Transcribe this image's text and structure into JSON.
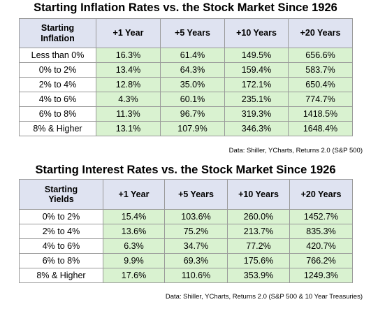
{
  "inflation": {
    "title": "Starting Inflation Rates vs. the Stock Market Since 1926",
    "corner_line1": "Starting",
    "corner_line2": "Inflation",
    "headers": [
      "+1 Year",
      "+5 Years",
      "+10 Years",
      "+20 Years"
    ],
    "rows": [
      {
        "label": "Less than 0%",
        "values": [
          "16.3%",
          "61.4%",
          "149.5%",
          "656.6%"
        ]
      },
      {
        "label": "0% to 2%",
        "values": [
          "13.4%",
          "64.3%",
          "159.4%",
          "583.7%"
        ]
      },
      {
        "label": "2% to 4%",
        "values": [
          "12.8%",
          "35.0%",
          "172.1%",
          "650.4%"
        ]
      },
      {
        "label": "4% to 6%",
        "values": [
          "4.3%",
          "60.1%",
          "235.1%",
          "774.7%"
        ]
      },
      {
        "label": "6% to 8%",
        "values": [
          "11.3%",
          "96.7%",
          "319.3%",
          "1418.5%"
        ]
      },
      {
        "label": "8% & Higher",
        "values": [
          "13.1%",
          "107.9%",
          "346.3%",
          "1648.4%"
        ]
      }
    ],
    "source": "Data: Shiller, YCharts, Returns 2.0 (S&P 500)"
  },
  "interest": {
    "title": "Starting Interest Rates vs. the Stock Market Since 1926",
    "corner_line1": "Starting",
    "corner_line2": "Yields",
    "headers": [
      "+1 Year",
      "+5 Years",
      "+10 Years",
      "+20 Years"
    ],
    "rows": [
      {
        "label": "0% to 2%",
        "values": [
          "15.4%",
          "103.6%",
          "260.0%",
          "1452.7%"
        ]
      },
      {
        "label": "2% to 4%",
        "values": [
          "13.6%",
          "75.2%",
          "213.7%",
          "835.3%"
        ]
      },
      {
        "label": "4% to 6%",
        "values": [
          "6.3%",
          "34.7%",
          "77.2%",
          "420.7%"
        ]
      },
      {
        "label": "6% to 8%",
        "values": [
          "9.9%",
          "69.3%",
          "175.6%",
          "766.2%"
        ]
      },
      {
        "label": "8% & Higher",
        "values": [
          "17.6%",
          "110.6%",
          "353.9%",
          "1249.3%"
        ]
      }
    ],
    "source": "Data: Shiller, YCharts, Returns 2.0 (S&P 500 & 10 Year Treasuries)"
  },
  "colors": {
    "header_bg": "#dfe3f1",
    "value_bg": "#d9f2d0",
    "border": "#9a9a9a"
  }
}
